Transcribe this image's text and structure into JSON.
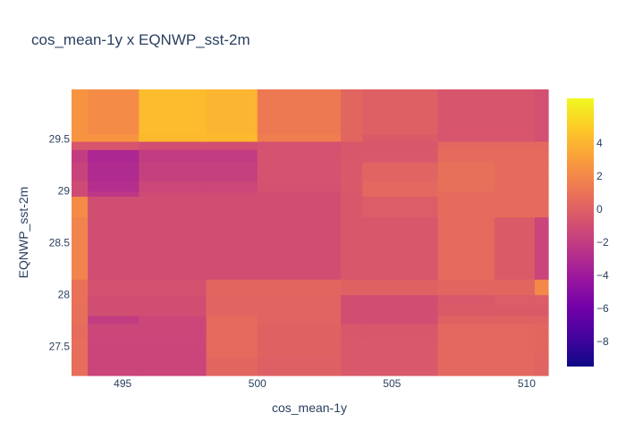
{
  "chart_data": {
    "type": "heatmap",
    "title": "cos_mean-1y x EQNWP_sst-2m",
    "xlabel": "cos_mean-1y",
    "ylabel": "EQNWP_sst-2m",
    "x_edges": [
      493.1,
      493.7,
      495.6,
      498.1,
      500.0,
      503.1,
      503.9,
      506.7,
      508.8,
      510.3,
      510.8
    ],
    "y_edges": [
      27.22,
      27.4,
      27.58,
      27.72,
      27.8,
      27.9,
      28.0,
      28.15,
      28.75,
      28.95,
      29.0,
      29.1,
      29.28,
      29.4,
      29.48,
      29.55,
      29.98
    ],
    "z": [
      [
        0.7,
        -1.5,
        -1.5,
        0.3,
        0.0,
        -0.4,
        -0.4,
        0.4,
        0.4,
        0.2
      ],
      [
        0.7,
        -1.5,
        -1.5,
        0.5,
        0.1,
        -0.4,
        -0.4,
        0.4,
        0.4,
        0.3
      ],
      [
        0.6,
        -1.4,
        -1.4,
        0.5,
        0.1,
        -0.5,
        -0.5,
        0.4,
        0.4,
        0.3
      ],
      [
        0.8,
        -2.0,
        -1.4,
        0.5,
        0.2,
        -1.0,
        -1.0,
        0.1,
        0.1,
        0.1
      ],
      [
        0.8,
        -1.0,
        -1.0,
        0.2,
        0.2,
        -1.0,
        -1.0,
        -0.3,
        -0.3,
        -0.3
      ],
      [
        0.9,
        -1.0,
        -1.0,
        0.2,
        0.2,
        -1.0,
        -1.0,
        -0.4,
        -0.2,
        -0.2
      ],
      [
        0.9,
        -0.8,
        -0.8,
        0.3,
        0.3,
        0.1,
        0.1,
        0.3,
        0.3,
        2.0
      ],
      [
        1.8,
        -1.0,
        -1.0,
        -1.0,
        -1.0,
        -0.5,
        -0.5,
        0.5,
        -0.3,
        -1.5
      ],
      [
        2.2,
        -1.0,
        -1.0,
        -1.0,
        -1.0,
        -0.5,
        -0.2,
        0.6,
        0.6,
        0.6
      ],
      [
        -1.2,
        -2.3,
        -1.2,
        -1.2,
        -1.0,
        -0.5,
        0.4,
        0.6,
        0.6,
        0.6
      ],
      [
        -1.2,
        -2.8,
        -1.4,
        -1.4,
        -0.8,
        -0.4,
        0.4,
        0.8,
        0.6,
        0.6
      ],
      [
        -1.6,
        -3.0,
        -1.8,
        -1.8,
        -0.7,
        -0.4,
        0.2,
        0.8,
        0.6,
        0.6
      ],
      [
        -2.0,
        -3.2,
        -2.0,
        -2.0,
        -0.7,
        -0.5,
        -0.4,
        0.6,
        0.6,
        0.6
      ],
      [
        -0.6,
        -0.6,
        -1.0,
        -1.0,
        -0.8,
        -0.5,
        -0.5,
        0.4,
        0.4,
        0.4
      ],
      [
        2.6,
        2.6,
        4.2,
        4.2,
        1.5,
        0.3,
        -0.3,
        -0.6,
        -0.6,
        -0.9
      ],
      [
        2.6,
        2.2,
        4.3,
        4.0,
        1.3,
        0.3,
        0.0,
        -0.6,
        -0.6,
        -0.9
      ]
    ],
    "xlim": [
      493.1,
      510.8
    ],
    "ylim": [
      27.22,
      29.98
    ],
    "x_ticks": [
      495,
      500,
      505,
      510
    ],
    "y_ticks": [
      27.5,
      28,
      28.5,
      29,
      29.5
    ],
    "colorbar": {
      "min": -9.5,
      "max": 6.7,
      "ticks": [
        4,
        2,
        0,
        -2,
        -4,
        -6,
        -8
      ]
    },
    "colorscale": [
      "#0d0887",
      "#46039f",
      "#7201a8",
      "#9c179e",
      "#bd3786",
      "#d8576b",
      "#ed7953",
      "#fb9f3a",
      "#fdca26",
      "#f0f921"
    ],
    "grid": false
  }
}
